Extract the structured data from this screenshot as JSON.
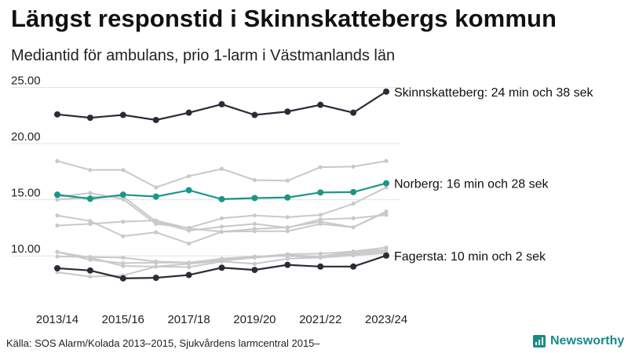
{
  "title": "Längst responstid i Skinnskattebergs kommun",
  "subtitle": "Mediantid för ambulans, prio 1-larm i Västmanlands län",
  "source": "Källa: SOS Alarm/Kolada 2013–2015, Sjukvårdens larmcentral 2015–",
  "brand": {
    "name": "Newsworthy",
    "logo_icon": "newsworthy-chart-icon",
    "color": "#1a8a86"
  },
  "chart_data": {
    "type": "line",
    "x": [
      "2013/14",
      "2014/15",
      "2015/16",
      "2016/17",
      "2017/18",
      "2018/19",
      "2019/20",
      "2020/21",
      "2021/22",
      "2022/23",
      "2023/24"
    ],
    "x_tick_labels": [
      "2013/14",
      "2015/16",
      "2017/18",
      "2019/20",
      "2021/22",
      "2023/24"
    ],
    "ylim": [
      7.5,
      25.8
    ],
    "y_ticks": [
      "10.00",
      "15.00",
      "20.00",
      "25.00"
    ],
    "grid": true,
    "highlighted": [
      {
        "color": "#2b2b38",
        "values": [
          22.6,
          22.3,
          22.55,
          22.1,
          22.75,
          23.5,
          22.55,
          22.85,
          23.45,
          22.75,
          24.63
        ],
        "label": "Skinnskatteberg: 24 min och 38 sek"
      },
      {
        "color": "#1a9688",
        "values": [
          15.45,
          15.08,
          15.45,
          15.28,
          15.85,
          15.05,
          15.15,
          15.2,
          15.65,
          15.68,
          16.47
        ],
        "label": "Norberg: 16 min och 28 sek"
      },
      {
        "color": "#2b2b38",
        "values": [
          8.9,
          8.7,
          8.0,
          8.05,
          8.3,
          8.95,
          8.75,
          9.2,
          9.05,
          9.05,
          10.03
        ],
        "label": "Fagersta: 10 min och 2 sek"
      }
    ],
    "background_series": {
      "color": "#c9c9c9",
      "series": [
        [
          18.45,
          17.65,
          17.65,
          16.1,
          17.1,
          17.75,
          16.75,
          16.7,
          17.9,
          17.95,
          18.45
        ],
        [
          15.25,
          15.6,
          15.05,
          12.85,
          12.5,
          13.35,
          13.6,
          13.45,
          13.65,
          14.65,
          16.1
        ],
        [
          15.0,
          15.25,
          15.3,
          13.05,
          12.25,
          12.6,
          12.85,
          12.5,
          13.25,
          13.35,
          13.65
        ],
        [
          13.6,
          13.1,
          11.75,
          12.1,
          11.1,
          12.15,
          12.2,
          12.2,
          12.85,
          12.55,
          13.95
        ],
        [
          12.7,
          12.85,
          13.05,
          13.15,
          12.45,
          12.15,
          12.4,
          12.55,
          13.05,
          12.55,
          13.9
        ],
        [
          10.35,
          9.65,
          9.35,
          9.4,
          9.4,
          9.65,
          9.9,
          10.15,
          10.2,
          10.4,
          10.75
        ],
        [
          10.35,
          9.85,
          9.1,
          9.05,
          9.3,
          9.55,
          9.85,
          10.05,
          9.95,
          10.35,
          10.55
        ],
        [
          9.95,
          9.9,
          9.85,
          9.5,
          9.4,
          9.75,
          9.95,
          10.0,
          9.85,
          10.2,
          10.4
        ],
        [
          8.55,
          8.15,
          8.25,
          9.05,
          9.0,
          9.5,
          9.3,
          9.75,
          9.85,
          10.05,
          10.25
        ]
      ]
    }
  }
}
